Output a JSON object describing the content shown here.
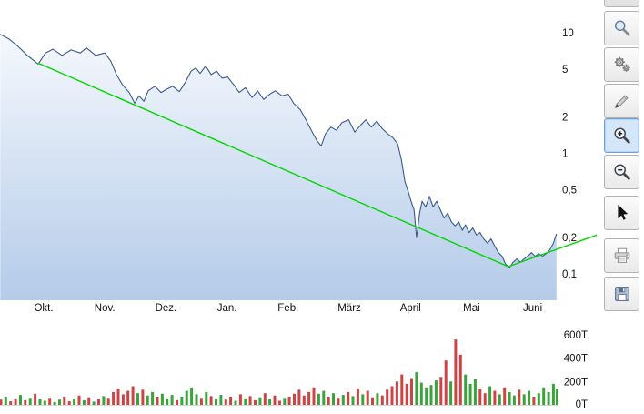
{
  "app": {
    "background": "#ffffff"
  },
  "toolbar": {
    "button_bg": "#f2f2f2",
    "button_border": "#b2b2b2",
    "selected_bg": "#d4e6f9",
    "selected_border": "#6f9fd8",
    "buttons": [
      {
        "name": "zoom-selection",
        "icon": "magnifier-icon",
        "selected": false
      },
      {
        "name": "settings",
        "icon": "gears-icon",
        "selected": false
      },
      {
        "name": "draw",
        "icon": "pencil-icon",
        "selected": false
      },
      {
        "name": "zoom-in",
        "icon": "zoom-in-icon",
        "selected": true
      },
      {
        "name": "zoom-out",
        "icon": "zoom-out-icon",
        "selected": false
      },
      {
        "name": "cursor",
        "icon": "cursor-icon",
        "selected": false
      },
      {
        "name": "print",
        "icon": "printer-icon",
        "selected": false
      },
      {
        "name": "save",
        "icon": "save-icon",
        "selected": false
      }
    ]
  },
  "chart_data": {
    "type": "line",
    "title": "",
    "scale": "logarithmic",
    "x_axis": {
      "labels": [
        "Okt.",
        "Nov.",
        "Dez.",
        "Jan.",
        "Feb.",
        "März",
        "April",
        "Mai",
        "Juni"
      ]
    },
    "price_axis": {
      "ticks": [
        10,
        5,
        2,
        1,
        0.5,
        0.2,
        0.1
      ],
      "tick_labels": [
        "10",
        "5",
        "2",
        "1",
        "0,5",
        "0,2",
        "0,1"
      ]
    },
    "volume_axis": {
      "ticks": [
        600,
        400,
        200,
        0
      ],
      "tick_labels": [
        "600T",
        "400T",
        "200T",
        "0T"
      ]
    },
    "price_series": {
      "name": "price",
      "color": "#3a5a8c",
      "fill_top": "#fdfeff",
      "fill_bottom": "#b4cbe9",
      "points": [
        [
          0.29,
          9.7
        ],
        [
          0.43,
          8.9
        ],
        [
          0.58,
          7.7
        ],
        [
          0.73,
          6.5
        ],
        [
          0.91,
          5.5
        ],
        [
          1.03,
          6.8
        ],
        [
          1.15,
          7.3
        ],
        [
          1.3,
          6.5
        ],
        [
          1.45,
          7.2
        ],
        [
          1.6,
          6.8
        ],
        [
          1.7,
          7.5
        ],
        [
          1.85,
          6.5
        ],
        [
          2.0,
          6.8
        ],
        [
          2.1,
          5.8
        ],
        [
          2.19,
          4.5
        ],
        [
          2.29,
          3.7
        ],
        [
          2.4,
          3.2
        ],
        [
          2.49,
          2.6
        ],
        [
          2.56,
          3.0
        ],
        [
          2.64,
          2.7
        ],
        [
          2.71,
          3.3
        ],
        [
          2.82,
          3.6
        ],
        [
          2.92,
          3.2
        ],
        [
          3.01,
          3.4
        ],
        [
          3.11,
          3.6
        ],
        [
          3.22,
          3.25
        ],
        [
          3.32,
          3.9
        ],
        [
          3.41,
          4.8
        ],
        [
          3.49,
          5.1
        ],
        [
          3.56,
          4.6
        ],
        [
          3.65,
          5.3
        ],
        [
          3.74,
          4.5
        ],
        [
          3.83,
          4.8
        ],
        [
          3.92,
          4.2
        ],
        [
          4.01,
          4.3
        ],
        [
          4.11,
          3.7
        ],
        [
          4.2,
          3.2
        ],
        [
          4.3,
          3.5
        ],
        [
          4.41,
          2.9
        ],
        [
          4.5,
          3.3
        ],
        [
          4.6,
          2.8
        ],
        [
          4.7,
          3.1
        ],
        [
          4.79,
          3.3
        ],
        [
          4.9,
          3.0
        ],
        [
          5.0,
          3.1
        ],
        [
          5.09,
          2.6
        ],
        [
          5.2,
          2.3
        ],
        [
          5.29,
          1.9
        ],
        [
          5.38,
          1.55
        ],
        [
          5.46,
          1.3
        ],
        [
          5.54,
          1.15
        ],
        [
          5.61,
          1.45
        ],
        [
          5.7,
          1.65
        ],
        [
          5.79,
          1.55
        ],
        [
          5.88,
          1.8
        ],
        [
          5.99,
          1.9
        ],
        [
          6.09,
          1.5
        ],
        [
          6.18,
          1.7
        ],
        [
          6.27,
          1.9
        ],
        [
          6.36,
          1.65
        ],
        [
          6.45,
          1.85
        ],
        [
          6.54,
          1.6
        ],
        [
          6.63,
          1.45
        ],
        [
          6.71,
          1.35
        ],
        [
          6.79,
          1.2
        ],
        [
          6.85,
          0.9
        ],
        [
          6.91,
          0.58
        ],
        [
          6.97,
          0.47
        ],
        [
          7.01,
          0.4
        ],
        [
          7.06,
          0.34
        ],
        [
          7.1,
          0.2
        ],
        [
          7.15,
          0.32
        ],
        [
          7.19,
          0.4
        ],
        [
          7.25,
          0.36
        ],
        [
          7.31,
          0.44
        ],
        [
          7.37,
          0.36
        ],
        [
          7.43,
          0.4
        ],
        [
          7.49,
          0.34
        ],
        [
          7.55,
          0.29
        ],
        [
          7.61,
          0.32
        ],
        [
          7.67,
          0.27
        ],
        [
          7.73,
          0.25
        ],
        [
          7.79,
          0.27
        ],
        [
          7.85,
          0.23
        ],
        [
          7.9,
          0.255
        ],
        [
          7.96,
          0.22
        ],
        [
          8.02,
          0.24
        ],
        [
          8.08,
          0.21
        ],
        [
          8.14,
          0.22
        ],
        [
          8.2,
          0.195
        ],
        [
          8.26,
          0.18
        ],
        [
          8.32,
          0.195
        ],
        [
          8.38,
          0.17
        ],
        [
          8.44,
          0.15
        ],
        [
          8.5,
          0.14
        ],
        [
          8.56,
          0.12
        ],
        [
          8.62,
          0.113
        ],
        [
          8.68,
          0.125
        ],
        [
          8.74,
          0.133
        ],
        [
          8.8,
          0.125
        ],
        [
          8.86,
          0.133
        ],
        [
          8.92,
          0.14
        ],
        [
          8.98,
          0.15
        ],
        [
          9.04,
          0.14
        ],
        [
          9.1,
          0.147
        ],
        [
          9.16,
          0.14
        ],
        [
          9.22,
          0.147
        ],
        [
          9.28,
          0.158
        ],
        [
          9.34,
          0.18
        ],
        [
          9.39,
          0.215
        ]
      ]
    },
    "trend_line": {
      "color": "#00d500",
      "segments": [
        [
          [
            0.91,
            5.6
          ],
          [
            8.6,
            0.115
          ]
        ],
        [
          [
            8.6,
            0.115
          ],
          [
            10.05,
            0.21
          ]
        ]
      ]
    },
    "volume_series": {
      "unit": "T",
      "colors": {
        "up": "#3aa43a",
        "down": "#cc4444"
      },
      "bars": [
        [
          0.3,
          45,
          "d"
        ],
        [
          0.38,
          70,
          "u"
        ],
        [
          0.46,
          30,
          "d"
        ],
        [
          0.54,
          55,
          "d"
        ],
        [
          0.62,
          85,
          "u"
        ],
        [
          0.7,
          40,
          "d"
        ],
        [
          0.78,
          60,
          "u"
        ],
        [
          0.86,
          95,
          "d"
        ],
        [
          0.94,
          50,
          "u"
        ],
        [
          1.02,
          35,
          "u"
        ],
        [
          1.1,
          60,
          "d"
        ],
        [
          1.18,
          25,
          "u"
        ],
        [
          1.26,
          45,
          "u"
        ],
        [
          1.34,
          70,
          "d"
        ],
        [
          1.42,
          30,
          "d"
        ],
        [
          1.5,
          55,
          "u"
        ],
        [
          1.58,
          80,
          "d"
        ],
        [
          1.66,
          40,
          "u"
        ],
        [
          1.74,
          65,
          "d"
        ],
        [
          1.82,
          28,
          "u"
        ],
        [
          1.9,
          50,
          "d"
        ],
        [
          1.98,
          75,
          "u"
        ],
        [
          2.06,
          60,
          "d"
        ],
        [
          2.14,
          110,
          "d"
        ],
        [
          2.22,
          140,
          "d"
        ],
        [
          2.3,
          90,
          "d"
        ],
        [
          2.38,
          120,
          "d"
        ],
        [
          2.46,
          160,
          "d"
        ],
        [
          2.54,
          100,
          "u"
        ],
        [
          2.62,
          130,
          "d"
        ],
        [
          2.7,
          80,
          "u"
        ],
        [
          2.78,
          110,
          "u"
        ],
        [
          2.86,
          70,
          "d"
        ],
        [
          2.94,
          95,
          "u"
        ],
        [
          3.02,
          55,
          "u"
        ],
        [
          3.1,
          85,
          "u"
        ],
        [
          3.18,
          40,
          "d"
        ],
        [
          3.26,
          70,
          "u"
        ],
        [
          3.34,
          120,
          "u"
        ],
        [
          3.42,
          150,
          "u"
        ],
        [
          3.5,
          90,
          "u"
        ],
        [
          3.58,
          60,
          "d"
        ],
        [
          3.66,
          110,
          "u"
        ],
        [
          3.74,
          75,
          "d"
        ],
        [
          3.82,
          50,
          "u"
        ],
        [
          3.9,
          85,
          "u"
        ],
        [
          3.98,
          45,
          "d"
        ],
        [
          4.06,
          70,
          "d"
        ],
        [
          4.14,
          35,
          "u"
        ],
        [
          4.22,
          90,
          "d"
        ],
        [
          4.3,
          55,
          "u"
        ],
        [
          4.38,
          75,
          "d"
        ],
        [
          4.46,
          40,
          "d"
        ],
        [
          4.54,
          65,
          "u"
        ],
        [
          4.62,
          100,
          "d"
        ],
        [
          4.7,
          50,
          "u"
        ],
        [
          4.78,
          80,
          "d"
        ],
        [
          4.86,
          35,
          "d"
        ],
        [
          4.94,
          60,
          "u"
        ],
        [
          5.02,
          70,
          "d"
        ],
        [
          5.1,
          95,
          "d"
        ],
        [
          5.18,
          130,
          "d"
        ],
        [
          5.26,
          80,
          "d"
        ],
        [
          5.34,
          110,
          "d"
        ],
        [
          5.42,
          150,
          "d"
        ],
        [
          5.5,
          95,
          "u"
        ],
        [
          5.58,
          120,
          "u"
        ],
        [
          5.66,
          70,
          "d"
        ],
        [
          5.74,
          100,
          "u"
        ],
        [
          5.82,
          60,
          "d"
        ],
        [
          5.9,
          85,
          "u"
        ],
        [
          5.98,
          110,
          "d"
        ],
        [
          6.06,
          75,
          "u"
        ],
        [
          6.14,
          140,
          "d"
        ],
        [
          6.22,
          90,
          "u"
        ],
        [
          6.3,
          120,
          "d"
        ],
        [
          6.38,
          65,
          "d"
        ],
        [
          6.46,
          100,
          "u"
        ],
        [
          6.54,
          80,
          "d"
        ],
        [
          6.62,
          130,
          "d"
        ],
        [
          6.7,
          160,
          "d"
        ],
        [
          6.78,
          200,
          "d"
        ],
        [
          6.86,
          260,
          "d"
        ],
        [
          6.94,
          180,
          "d"
        ],
        [
          7.02,
          230,
          "d"
        ],
        [
          7.1,
          280,
          "u"
        ],
        [
          7.18,
          190,
          "u"
        ],
        [
          7.26,
          150,
          "u"
        ],
        [
          7.34,
          170,
          "u"
        ],
        [
          7.42,
          210,
          "u"
        ],
        [
          7.5,
          240,
          "d"
        ],
        [
          7.58,
          380,
          "d"
        ],
        [
          7.66,
          200,
          "u"
        ],
        [
          7.74,
          560,
          "d"
        ],
        [
          7.82,
          430,
          "d"
        ],
        [
          7.9,
          260,
          "u"
        ],
        [
          7.98,
          180,
          "u"
        ],
        [
          8.06,
          220,
          "u"
        ],
        [
          8.14,
          140,
          "d"
        ],
        [
          8.22,
          100,
          "d"
        ],
        [
          8.3,
          160,
          "u"
        ],
        [
          8.38,
          120,
          "d"
        ],
        [
          8.46,
          90,
          "u"
        ],
        [
          8.54,
          150,
          "d"
        ],
        [
          8.62,
          110,
          "u"
        ],
        [
          8.7,
          80,
          "u"
        ],
        [
          8.78,
          130,
          "d"
        ],
        [
          8.86,
          90,
          "u"
        ],
        [
          8.94,
          120,
          "u"
        ],
        [
          9.02,
          70,
          "d"
        ],
        [
          9.1,
          100,
          "u"
        ],
        [
          9.18,
          150,
          "u"
        ],
        [
          9.26,
          110,
          "u"
        ],
        [
          9.34,
          180,
          "u"
        ],
        [
          9.4,
          140,
          "u"
        ]
      ]
    }
  }
}
